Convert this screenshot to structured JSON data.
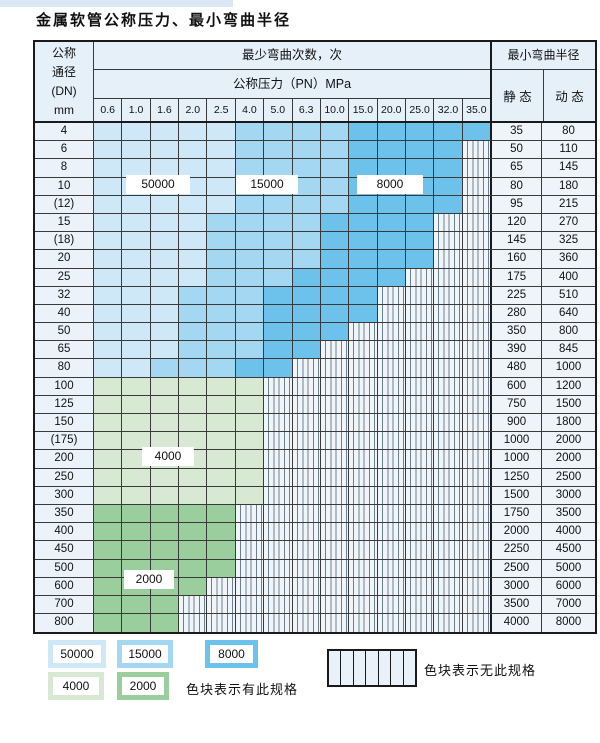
{
  "page": {
    "title": "金属软管公称压力、最小弯曲半径"
  },
  "colors": {
    "b1": "#cfe8f8",
    "b2": "#a4d7f2",
    "b3": "#6cc2ea",
    "g1": "#d7e9d3",
    "g2": "#9bce9d",
    "hatch_bg": "#f0f5fa",
    "header_bg": "#e6f0f9"
  },
  "table": {
    "header": {
      "dn_lines": [
        "公称",
        "通径",
        "(DN)",
        "mm"
      ],
      "bend_cycles": "最少弯曲次数，次",
      "pressure_title": "公称压力（PN）MPa",
      "pressures": [
        "0.6",
        "1.0",
        "1.6",
        "2.0",
        "2.5",
        "4.0",
        "5.0",
        "6.3",
        "10.0",
        "15.0",
        "20.0",
        "25.0",
        "32.0",
        "35.0"
      ],
      "radius_title": "最小弯曲半径",
      "static_label": "静 态",
      "dynamic_label": "动 态"
    },
    "pressure_col_count": 14,
    "rows": [
      {
        "dn": "4",
        "zones": [
          [
            "b1",
            5
          ],
          [
            "b2",
            4
          ],
          [
            "b3",
            5
          ]
        ],
        "static": "35",
        "dynamic": "80"
      },
      {
        "dn": "6",
        "zones": [
          [
            "b1",
            5
          ],
          [
            "b2",
            4
          ],
          [
            "b3",
            4
          ]
        ],
        "static": "50",
        "dynamic": "110"
      },
      {
        "dn": "8",
        "zones": [
          [
            "b1",
            5
          ],
          [
            "b2",
            4
          ],
          [
            "b3",
            4
          ]
        ],
        "static": "65",
        "dynamic": "145"
      },
      {
        "dn": "10",
        "zones": [
          [
            "b1",
            5
          ],
          [
            "b2",
            4
          ],
          [
            "b3",
            4
          ]
        ],
        "static": "80",
        "dynamic": "180"
      },
      {
        "dn": "(12)",
        "zones": [
          [
            "b1",
            5
          ],
          [
            "b2",
            4
          ],
          [
            "b3",
            4
          ]
        ],
        "static": "95",
        "dynamic": "215"
      },
      {
        "dn": "15",
        "zones": [
          [
            "b1",
            4
          ],
          [
            "b2",
            4
          ],
          [
            "b3",
            4
          ]
        ],
        "static": "120",
        "dynamic": "270"
      },
      {
        "dn": "(18)",
        "zones": [
          [
            "b1",
            4
          ],
          [
            "b2",
            4
          ],
          [
            "b3",
            4
          ]
        ],
        "static": "145",
        "dynamic": "325"
      },
      {
        "dn": "20",
        "zones": [
          [
            "b1",
            4
          ],
          [
            "b2",
            4
          ],
          [
            "b3",
            4
          ]
        ],
        "static": "160",
        "dynamic": "360"
      },
      {
        "dn": "25",
        "zones": [
          [
            "b1",
            4
          ],
          [
            "b2",
            3
          ],
          [
            "b3",
            4
          ]
        ],
        "static": "175",
        "dynamic": "400"
      },
      {
        "dn": "32",
        "zones": [
          [
            "b1",
            3
          ],
          [
            "b2",
            3
          ],
          [
            "b3",
            4
          ]
        ],
        "static": "225",
        "dynamic": "510"
      },
      {
        "dn": "40",
        "zones": [
          [
            "b1",
            3
          ],
          [
            "b2",
            3
          ],
          [
            "b3",
            4
          ]
        ],
        "static": "280",
        "dynamic": "640"
      },
      {
        "dn": "50",
        "zones": [
          [
            "b1",
            3
          ],
          [
            "b2",
            3
          ],
          [
            "b3",
            3
          ]
        ],
        "static": "350",
        "dynamic": "800"
      },
      {
        "dn": "65",
        "zones": [
          [
            "b1",
            3
          ],
          [
            "b2",
            3
          ],
          [
            "b3",
            2
          ]
        ],
        "static": "390",
        "dynamic": "845"
      },
      {
        "dn": "80",
        "zones": [
          [
            "b1",
            2
          ],
          [
            "b2",
            3
          ],
          [
            "b3",
            2
          ]
        ],
        "static": "480",
        "dynamic": "1000"
      },
      {
        "dn": "100",
        "zones": [
          [
            "g1",
            6
          ]
        ],
        "static": "600",
        "dynamic": "1200"
      },
      {
        "dn": "125",
        "zones": [
          [
            "g1",
            6
          ]
        ],
        "static": "750",
        "dynamic": "1500"
      },
      {
        "dn": "150",
        "zones": [
          [
            "g1",
            6
          ]
        ],
        "static": "900",
        "dynamic": "1800"
      },
      {
        "dn": "(175)",
        "zones": [
          [
            "g1",
            6
          ]
        ],
        "static": "1000",
        "dynamic": "2000"
      },
      {
        "dn": "200",
        "zones": [
          [
            "g1",
            6
          ]
        ],
        "static": "1000",
        "dynamic": "2000"
      },
      {
        "dn": "250",
        "zones": [
          [
            "g1",
            6
          ]
        ],
        "static": "1250",
        "dynamic": "2500"
      },
      {
        "dn": "300",
        "zones": [
          [
            "g1",
            6
          ]
        ],
        "static": "1500",
        "dynamic": "3000"
      },
      {
        "dn": "350",
        "zones": [
          [
            "g2",
            5
          ]
        ],
        "static": "1750",
        "dynamic": "3500"
      },
      {
        "dn": "400",
        "zones": [
          [
            "g2",
            5
          ]
        ],
        "static": "2000",
        "dynamic": "4000"
      },
      {
        "dn": "450",
        "zones": [
          [
            "g2",
            5
          ]
        ],
        "static": "2250",
        "dynamic": "4500"
      },
      {
        "dn": "500",
        "zones": [
          [
            "g2",
            5
          ]
        ],
        "static": "2500",
        "dynamic": "5000"
      },
      {
        "dn": "600",
        "zones": [
          [
            "g2",
            4
          ]
        ],
        "static": "3000",
        "dynamic": "6000"
      },
      {
        "dn": "700",
        "zones": [
          [
            "g2",
            3
          ]
        ],
        "static": "3500",
        "dynamic": "7000"
      },
      {
        "dn": "800",
        "zones": [
          [
            "g2",
            3
          ]
        ],
        "static": "4000",
        "dynamic": "8000"
      }
    ]
  },
  "overlays": {
    "cycles_50000": "50000",
    "cycles_15000": "15000",
    "cycles_8000": "8000",
    "cycles_4000": "4000",
    "cycles_2000": "2000"
  },
  "legend": {
    "items": [
      {
        "label": "50000",
        "color_key": "b1"
      },
      {
        "label": "15000",
        "color_key": "b2"
      },
      {
        "label": "8000",
        "color_key": "b3"
      },
      {
        "label": "4000",
        "color_key": "g1"
      },
      {
        "label": "2000",
        "color_key": "g2"
      }
    ],
    "has_spec_text": "色块表示有此规格",
    "no_spec_text": "色块表示无此规格",
    "no_spec_cells": 7
  }
}
